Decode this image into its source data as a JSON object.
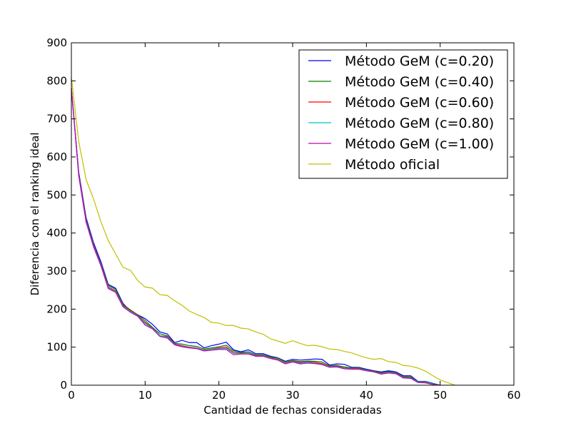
{
  "chart_data": {
    "type": "line",
    "xlabel": "Cantidad de fechas consideradas",
    "ylabel": "Diferencia con el ranking ideal",
    "xlim": [
      0,
      60
    ],
    "ylim": [
      0,
      900
    ],
    "xticks": [
      0,
      10,
      20,
      30,
      40,
      50,
      60
    ],
    "yticks": [
      0,
      100,
      200,
      300,
      400,
      500,
      600,
      700,
      800,
      900
    ],
    "grid": false,
    "legend_position": "top-right",
    "series": [
      {
        "name": "Método GeM (c=0.20)",
        "color": "#0000ff",
        "x": [
          0,
          1,
          2,
          3,
          4,
          5,
          6,
          7,
          8,
          9,
          10,
          11,
          12,
          13,
          14,
          15,
          16,
          17,
          18,
          19,
          20,
          21,
          22,
          23,
          24,
          25,
          26,
          27,
          28,
          29,
          30,
          31,
          32,
          33,
          34,
          35,
          36,
          37,
          38,
          39,
          40,
          41,
          42,
          43,
          44,
          45,
          46,
          47,
          48,
          49,
          50
        ],
        "y": [
          780,
          560,
          440,
          375,
          325,
          265,
          255,
          215,
          195,
          185,
          175,
          160,
          140,
          135,
          112,
          118,
          112,
          112,
          98,
          104,
          108,
          113,
          93,
          88,
          93,
          83,
          83,
          76,
          72,
          63,
          68,
          66,
          67,
          69,
          68,
          53,
          56,
          55,
          47,
          47,
          42,
          38,
          35,
          38,
          35,
          25,
          25,
          10,
          10,
          5,
          0
        ]
      },
      {
        "name": "Método GeM (c=0.40)",
        "color": "#008000",
        "x": [
          0,
          1,
          2,
          3,
          4,
          5,
          6,
          7,
          8,
          9,
          10,
          11,
          12,
          13,
          14,
          15,
          16,
          17,
          18,
          19,
          20,
          21,
          22,
          23,
          24,
          25,
          26,
          27,
          28,
          29,
          30,
          31,
          32,
          33,
          34,
          35,
          36,
          37,
          38,
          39,
          40,
          41,
          42,
          43,
          44,
          45,
          46,
          47,
          48,
          49,
          50
        ],
        "y": [
          780,
          555,
          435,
          370,
          320,
          262,
          252,
          212,
          198,
          185,
          170,
          152,
          135,
          130,
          110,
          108,
          104,
          102,
          95,
          98,
          101,
          105,
          90,
          86,
          88,
          80,
          80,
          74,
          71,
          61,
          65,
          62,
          63,
          63,
          61,
          51,
          52,
          48,
          45,
          46,
          40,
          37,
          33,
          36,
          33,
          23,
          22,
          9,
          9,
          4,
          0
        ]
      },
      {
        "name": "Método GeM (c=0.60)",
        "color": "#ff0000",
        "x": [
          0,
          1,
          2,
          3,
          4,
          5,
          6,
          7,
          8,
          9,
          10,
          11,
          12,
          13,
          14,
          15,
          16,
          17,
          18,
          19,
          20,
          21,
          22,
          23,
          24,
          25,
          26,
          27,
          28,
          29,
          30,
          31,
          32,
          33,
          34,
          35,
          36,
          37,
          38,
          39,
          40,
          41,
          42,
          43,
          44,
          45,
          46,
          47,
          48,
          49,
          50
        ],
        "y": [
          780,
          555,
          432,
          368,
          318,
          258,
          248,
          210,
          196,
          183,
          165,
          150,
          130,
          128,
          108,
          104,
          100,
          98,
          92,
          95,
          98,
          100,
          86,
          84,
          85,
          78,
          78,
          72,
          68,
          58,
          63,
          60,
          61,
          60,
          57,
          49,
          50,
          45,
          44,
          44,
          39,
          36,
          31,
          34,
          32,
          21,
          20,
          8,
          8,
          3,
          0
        ]
      },
      {
        "name": "Método GeM (c=0.80)",
        "color": "#00bfbf",
        "x": [
          0,
          1,
          2,
          3,
          4,
          5,
          6,
          7,
          8,
          9,
          10,
          11,
          12,
          13,
          14,
          15,
          16,
          17,
          18,
          19,
          20,
          21,
          22,
          23,
          24,
          25,
          26,
          27,
          28,
          29,
          30,
          31,
          32,
          33,
          34,
          35,
          36,
          37,
          38,
          39,
          40,
          41,
          42,
          43,
          44,
          45,
          46,
          47,
          48,
          49,
          50
        ],
        "y": [
          780,
          552,
          430,
          366,
          316,
          256,
          246,
          208,
          194,
          182,
          162,
          149,
          130,
          126,
          107,
          102,
          99,
          97,
          91,
          94,
          96,
          97,
          84,
          83,
          84,
          77,
          77,
          71,
          67,
          57,
          62,
          58,
          60,
          58,
          55,
          48,
          49,
          44,
          43,
          43,
          39,
          35,
          30,
          33,
          31,
          20,
          19,
          8,
          7,
          3,
          0
        ]
      },
      {
        "name": "Método GeM (c=1.00)",
        "color": "#bf00bf",
        "x": [
          0,
          1,
          2,
          3,
          4,
          5,
          6,
          7,
          8,
          9,
          10,
          11,
          12,
          13,
          14,
          15,
          16,
          17,
          18,
          19,
          20,
          21,
          22,
          23,
          24,
          25,
          26,
          27,
          28,
          29,
          30,
          31,
          32,
          33,
          34,
          35,
          36,
          37,
          38,
          39,
          40,
          41,
          42,
          43,
          44,
          45,
          46,
          47,
          48,
          49,
          50
        ],
        "y": [
          780,
          550,
          428,
          364,
          314,
          254,
          244,
          206,
          192,
          181,
          158,
          148,
          128,
          124,
          106,
          101,
          98,
          96,
          90,
          92,
          94,
          94,
          80,
          82,
          82,
          76,
          76,
          70,
          66,
          56,
          61,
          56,
          58,
          57,
          54,
          47,
          48,
          43,
          42,
          42,
          38,
          35,
          29,
          32,
          30,
          19,
          18,
          7,
          6,
          2,
          0
        ]
      },
      {
        "name": "Método oficial",
        "color": "#bfbf00",
        "x": [
          0,
          1,
          2,
          3,
          4,
          5,
          6,
          7,
          8,
          9,
          10,
          11,
          12,
          13,
          14,
          15,
          16,
          17,
          18,
          19,
          20,
          21,
          22,
          23,
          24,
          25,
          26,
          27,
          28,
          29,
          30,
          31,
          32,
          33,
          34,
          35,
          36,
          37,
          38,
          39,
          40,
          41,
          42,
          43,
          44,
          45,
          46,
          47,
          48,
          49,
          50,
          51,
          52
        ],
        "y": [
          810,
          640,
          540,
          490,
          430,
          380,
          345,
          310,
          302,
          275,
          258,
          255,
          238,
          236,
          222,
          210,
          195,
          186,
          178,
          165,
          163,
          157,
          157,
          150,
          148,
          140,
          134,
          122,
          116,
          110,
          117,
          110,
          104,
          105,
          101,
          95,
          94,
          89,
          85,
          78,
          72,
          68,
          70,
          62,
          60,
          52,
          50,
          45,
          37,
          25,
          14,
          7,
          0
        ]
      }
    ]
  }
}
